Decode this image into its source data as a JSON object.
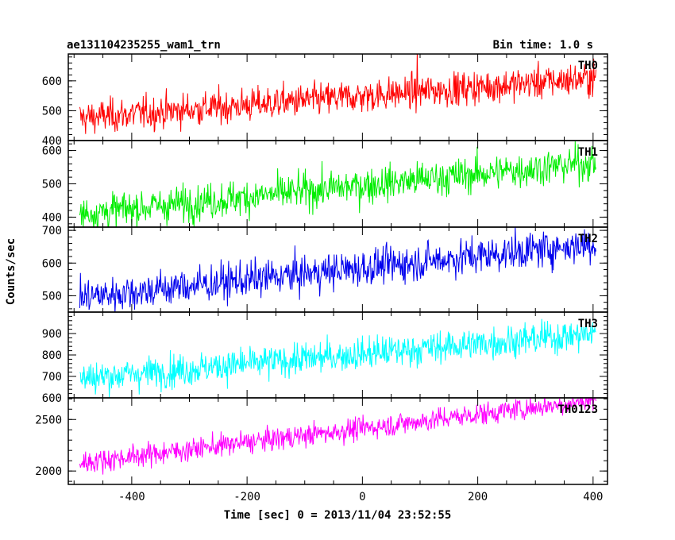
{
  "chart_data": {
    "type": "line",
    "title": "ae131104235255_wam1_trn",
    "subtitle": "Bin time: 1.0 s",
    "xlabel": "Time [sec] 0 = 2013/11/04 23:52:55",
    "ylabel": "Counts/sec",
    "xlim": [
      -510,
      425
    ],
    "xticks": [
      -400,
      -200,
      0,
      200,
      400
    ],
    "sample_interval": 1.0,
    "x_range": [
      -490,
      405
    ],
    "panels": [
      {
        "name": "TH0",
        "color": "#ff0000",
        "ylim": [
          400,
          690
        ],
        "yticks": [
          400,
          500,
          600
        ],
        "start": 475,
        "end": 610,
        "noise": 28,
        "spikes": [
          [
            95,
            700
          ]
        ]
      },
      {
        "name": "TH1",
        "color": "#00ee00",
        "ylim": [
          370,
          630
        ],
        "yticks": [
          400,
          500,
          600
        ],
        "start": 410,
        "end": 565,
        "noise": 27,
        "spikes": []
      },
      {
        "name": "TH2",
        "color": "#0000ee",
        "ylim": [
          450,
          710
        ],
        "yticks": [
          500,
          600,
          700
        ],
        "start": 495,
        "end": 660,
        "noise": 28,
        "spikes": []
      },
      {
        "name": "TH3",
        "color": "#00ffff",
        "ylim": [
          600,
          1000
        ],
        "yticks": [
          600,
          700,
          800,
          900
        ],
        "start": 690,
        "end": 900,
        "noise": 38,
        "spikes": []
      },
      {
        "name": "TH0123",
        "color": "#ff00ff",
        "ylim": [
          1870,
          2710
        ],
        "yticks": [
          2000,
          2500
        ],
        "start": 2080,
        "end": 2690,
        "noise": 55,
        "spikes": []
      }
    ]
  }
}
